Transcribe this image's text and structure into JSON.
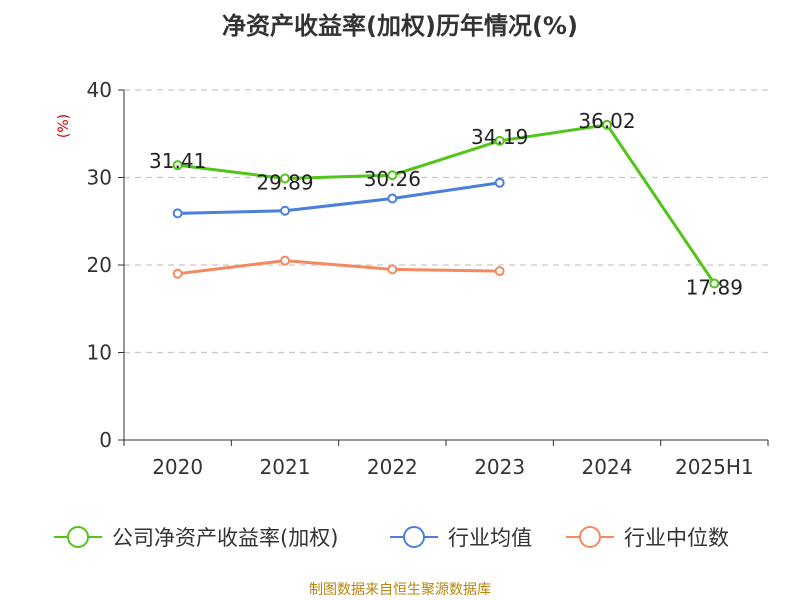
{
  "chart_data": {
    "type": "line",
    "title": "净资产收益率(加权)历年情况(%)",
    "unit_label": "(%)",
    "categories": [
      "2020",
      "2021",
      "2022",
      "2023",
      "2024",
      "2025H1"
    ],
    "ylim": [
      0,
      40
    ],
    "yticks": [
      0,
      10,
      20,
      30,
      40
    ],
    "grid": true,
    "legend_position": "bottom",
    "series": [
      {
        "name": "公司净资产收益率(加权)",
        "color": "#52c41a",
        "values": [
          31.41,
          29.89,
          30.26,
          34.19,
          36.02,
          17.89
        ],
        "labels": [
          "31.41",
          "29.89",
          "30.26",
          "34.19",
          "36.02",
          "17.89"
        ]
      },
      {
        "name": "行业均值",
        "color": "#4a7fdc",
        "values": [
          25.9,
          26.2,
          27.6,
          29.4,
          null,
          null
        ]
      },
      {
        "name": "行业中位数",
        "color": "#f4895f",
        "values": [
          19.0,
          20.5,
          19.5,
          19.3,
          null,
          null
        ]
      }
    ],
    "source": "制图数据来自恒生聚源数据库"
  }
}
